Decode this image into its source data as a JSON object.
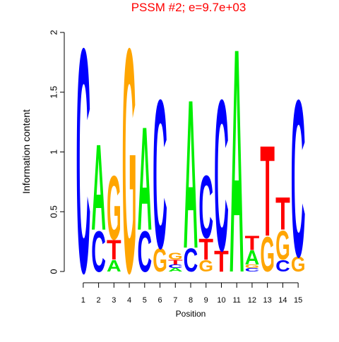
{
  "chart_data": {
    "type": "logo",
    "title": "PSSM #2; e=9.7e+03",
    "x_label": "Position",
    "y_label": "Information content",
    "x": [
      1,
      2,
      3,
      4,
      5,
      6,
      7,
      8,
      9,
      10,
      11,
      12,
      13,
      14,
      15
    ],
    "xlim": [
      0.5,
      15.5
    ],
    "xticks": [
      1,
      2,
      3,
      4,
      5,
      6,
      7,
      8,
      9,
      10,
      11,
      12,
      13,
      14,
      15
    ],
    "ylim": [
      0,
      2
    ],
    "yticks": [
      0,
      0.5,
      1,
      1.5,
      2
    ],
    "series": [
      {
        "name": "A",
        "color": "#00ee00",
        "values": [
          0,
          0.74,
          0.1,
          0,
          0.89,
          0,
          0.03,
          1.28,
          0,
          0,
          1.93,
          0.12,
          0,
          0,
          0
        ]
      },
      {
        "name": "C",
        "color": "#0000ff",
        "values": [
          1.93,
          0.35,
          0,
          0,
          0.35,
          1.28,
          0.03,
          0.2,
          0.54,
          1.3,
          0,
          0.03,
          0,
          0.1,
          1.35
        ]
      },
      {
        "name": "G",
        "color": "#ffa500",
        "values": [
          0,
          0,
          0.55,
          1.93,
          0,
          0.2,
          0.06,
          0,
          0.1,
          0,
          0,
          0.03,
          0.3,
          0.25,
          0.13
        ]
      },
      {
        "name": "T",
        "color": "#ff0000",
        "values": [
          0,
          0,
          0.17,
          0,
          0,
          0,
          0.04,
          0,
          0.18,
          0.18,
          0,
          0.12,
          0.78,
          0.28,
          0
        ]
      }
    ]
  }
}
